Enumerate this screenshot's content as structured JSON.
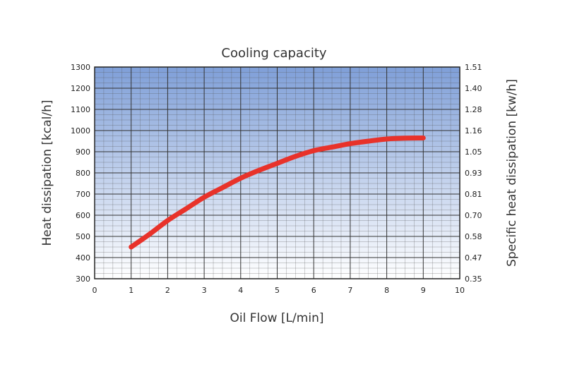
{
  "chart_data": {
    "type": "line",
    "title": "Cooling capacity",
    "xlabel": "Oil Flow [L/min]",
    "ylabel": "Heat dissipation [kcal/h]",
    "y2label": "Specific heat dissipation [kw/h]",
    "xlim": [
      0,
      10
    ],
    "ylim": [
      300,
      1300
    ],
    "grid": true,
    "x_ticks": [
      "0",
      "1",
      "2",
      "3",
      "4",
      "5",
      "6",
      "7",
      "8",
      "9",
      "10"
    ],
    "y_ticks": [
      "300",
      "400",
      "500",
      "600",
      "700",
      "800",
      "900",
      "1000",
      "1100",
      "1200",
      "1300"
    ],
    "y2_ticks": [
      "0.35",
      "0.47",
      "0.58",
      "0.70",
      "0.81",
      "0.93",
      "1.05",
      "1.16",
      "1.28",
      "1.40",
      "1.51"
    ],
    "series": [
      {
        "name": "Cooling capacity",
        "color": "#e8322a",
        "x": [
          1,
          1.5,
          2,
          2.5,
          3,
          3.5,
          4,
          4.5,
          5,
          5.5,
          6,
          6.5,
          7,
          7.5,
          8,
          8.5,
          9
        ],
        "y": [
          450,
          510,
          575,
          630,
          685,
          730,
          775,
          812,
          845,
          878,
          905,
          922,
          938,
          950,
          960,
          964,
          965
        ]
      }
    ]
  },
  "colors": {
    "plot_top": "#7f9fd8",
    "plot_bottom": "#ffffff",
    "grid_major": "#333333",
    "grid_minor": "#555555"
  }
}
